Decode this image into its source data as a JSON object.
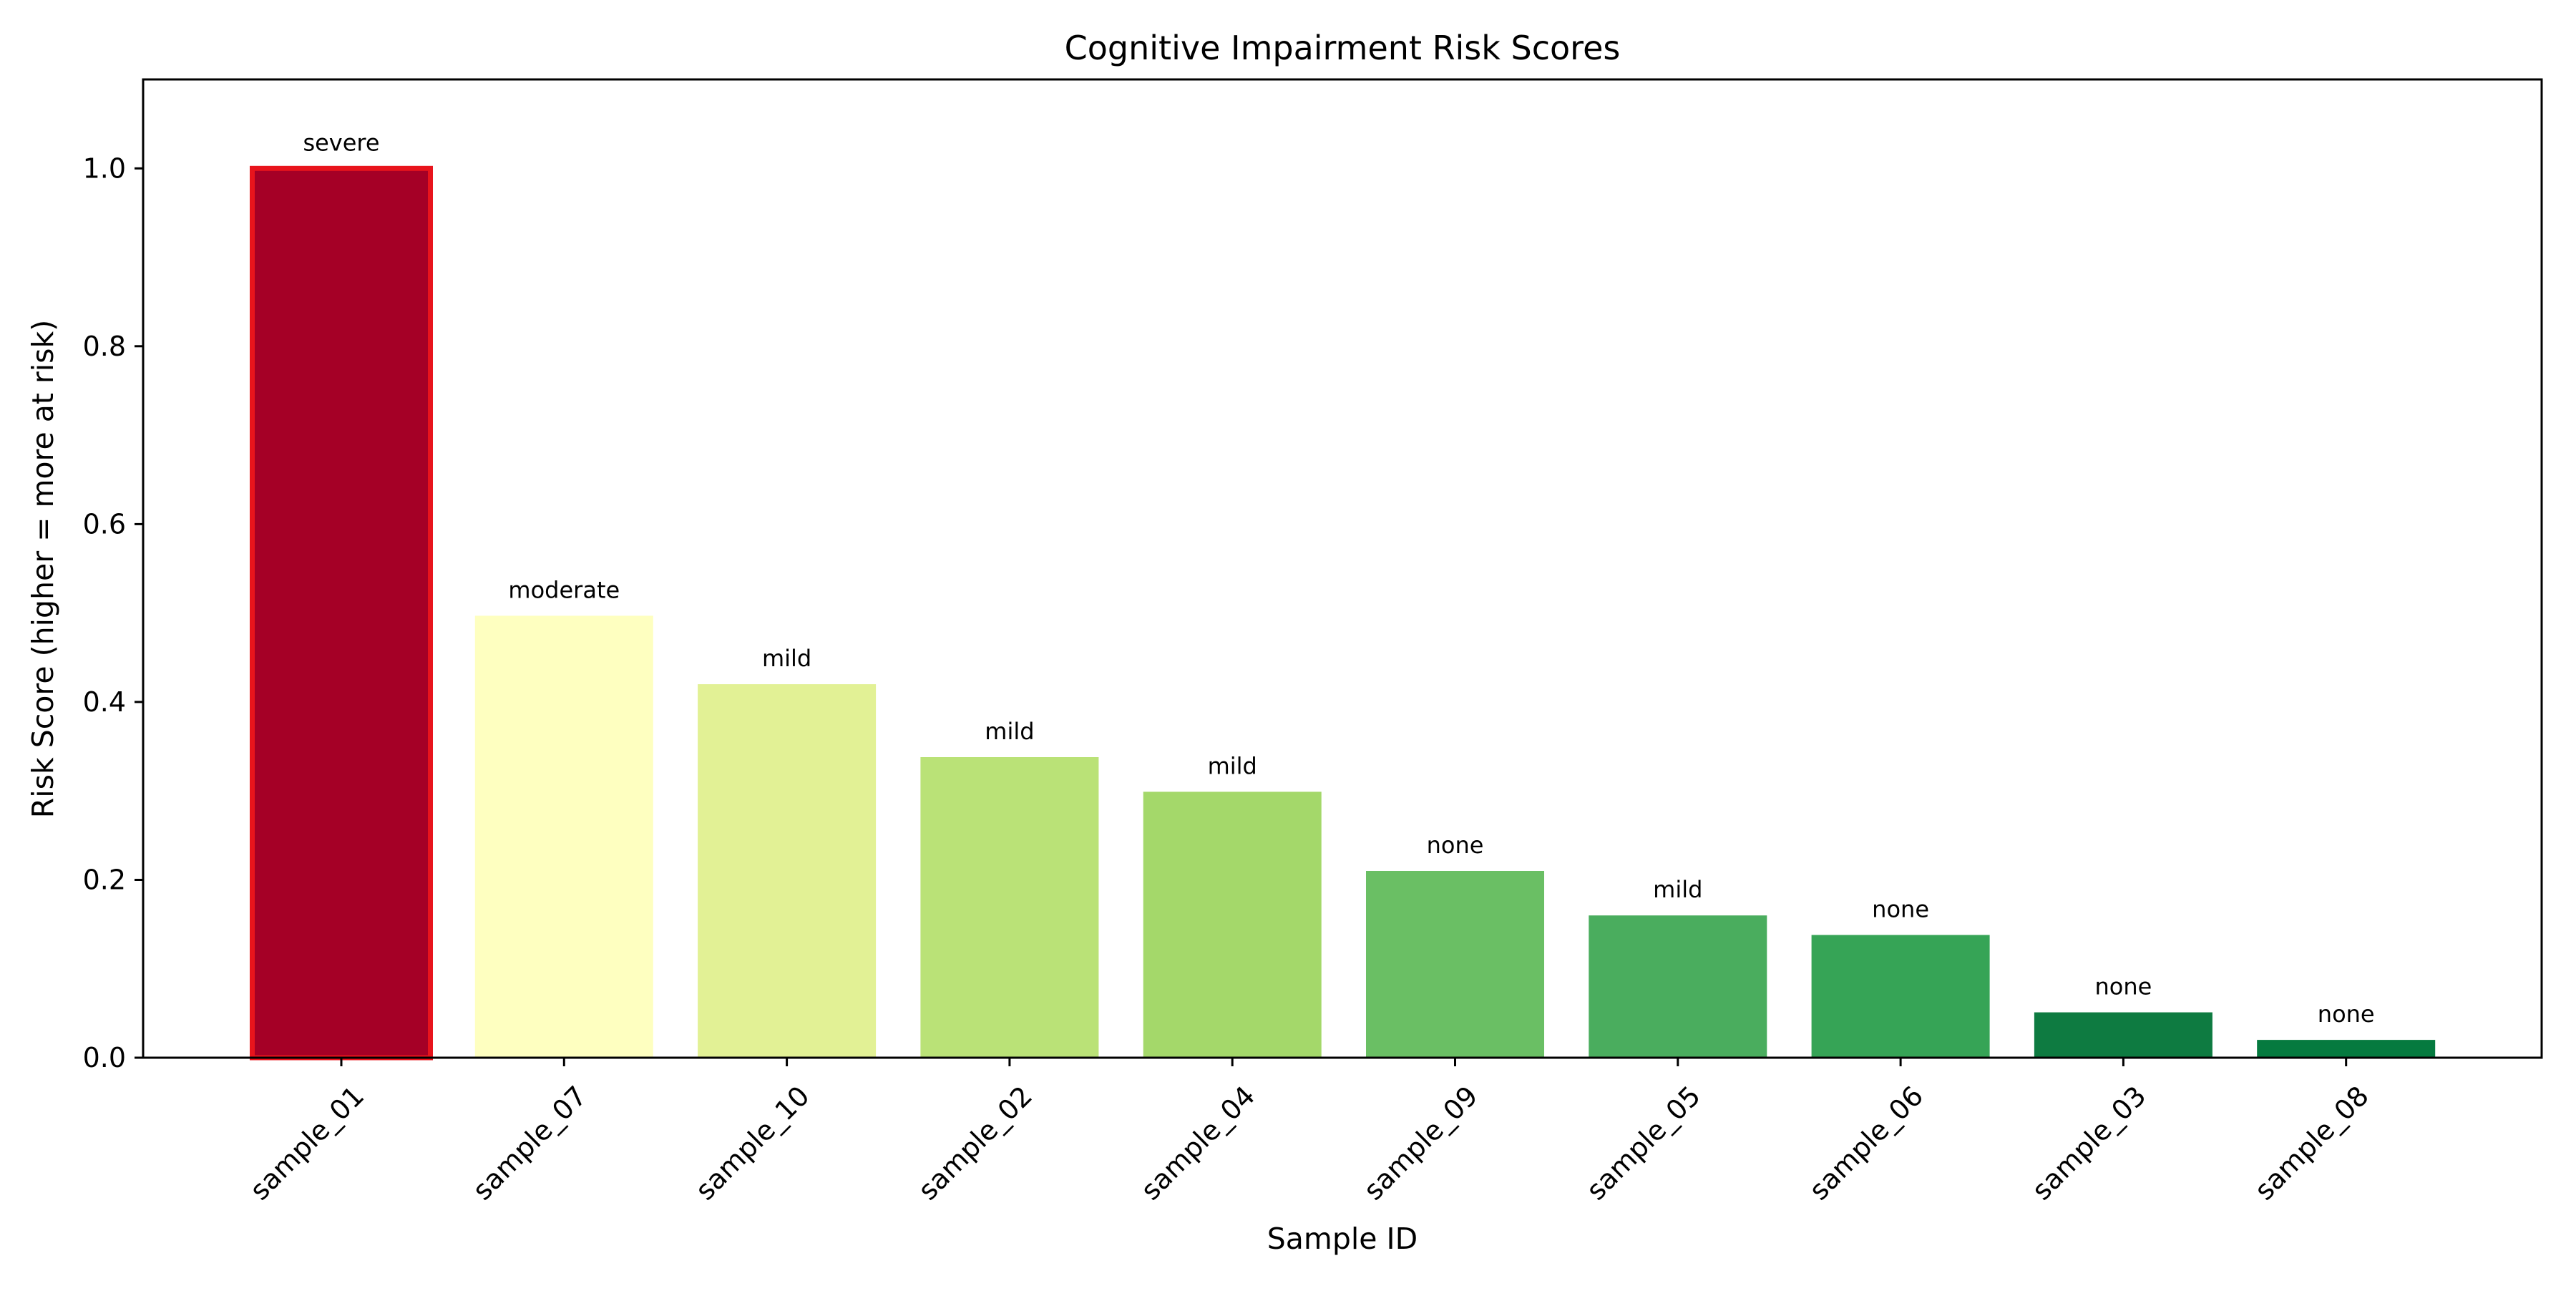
{
  "chart_data": {
    "type": "bar",
    "title": "Cognitive Impairment Risk Scores",
    "xlabel": "Sample ID",
    "ylabel": "Risk Score (higher = more at risk)",
    "categories": [
      "sample_01",
      "sample_07",
      "sample_10",
      "sample_02",
      "sample_04",
      "sample_09",
      "sample_05",
      "sample_06",
      "sample_03",
      "sample_08"
    ],
    "values": [
      1.0,
      0.497,
      0.42,
      0.338,
      0.299,
      0.21,
      0.16,
      0.138,
      0.051,
      0.02
    ],
    "bar_labels": [
      "severe",
      "moderate",
      "mild",
      "mild",
      "mild",
      "none",
      "mild",
      "none",
      "none",
      "none"
    ],
    "colors": [
      "#a50026",
      "#feffc0",
      "#e2f195",
      "#bae277",
      "#a4d86a",
      "#6abf64",
      "#4aad5e",
      "#36a456",
      "#0e7b41",
      "#057a3f"
    ],
    "highlight": {
      "index": 0,
      "edge_color": "#e8141c"
    },
    "ylim": [
      0,
      1.1
    ],
    "yticks": [
      0.0,
      0.2,
      0.4,
      0.6,
      0.8,
      1.0
    ],
    "ytick_labels": [
      "0.0",
      "0.2",
      "0.4",
      "0.6",
      "0.8",
      "1.0"
    ],
    "xtick_rotation_deg": 45,
    "grid": false,
    "legend": "none"
  }
}
